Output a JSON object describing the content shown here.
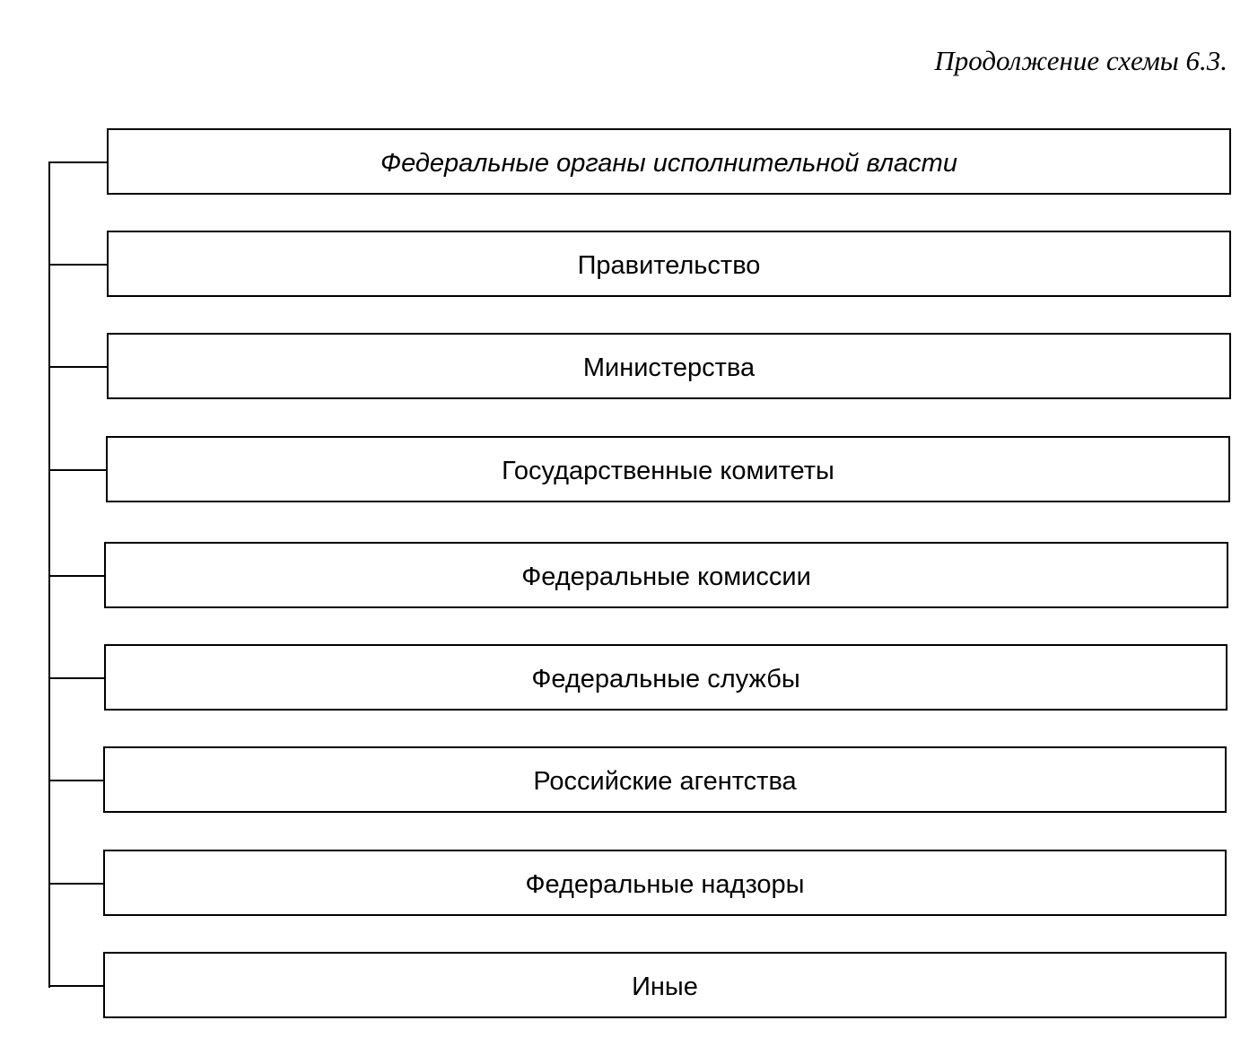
{
  "caption": "Продолжение схемы 6.3.",
  "header_box": "Федеральные органы исполнительной власти",
  "items": [
    "Правительство",
    "Министерства",
    "Государственные комитеты",
    "Федеральные комиссии",
    "Федеральные службы",
    "Российские агентства",
    "Федеральные надзоры",
    "Иные"
  ]
}
